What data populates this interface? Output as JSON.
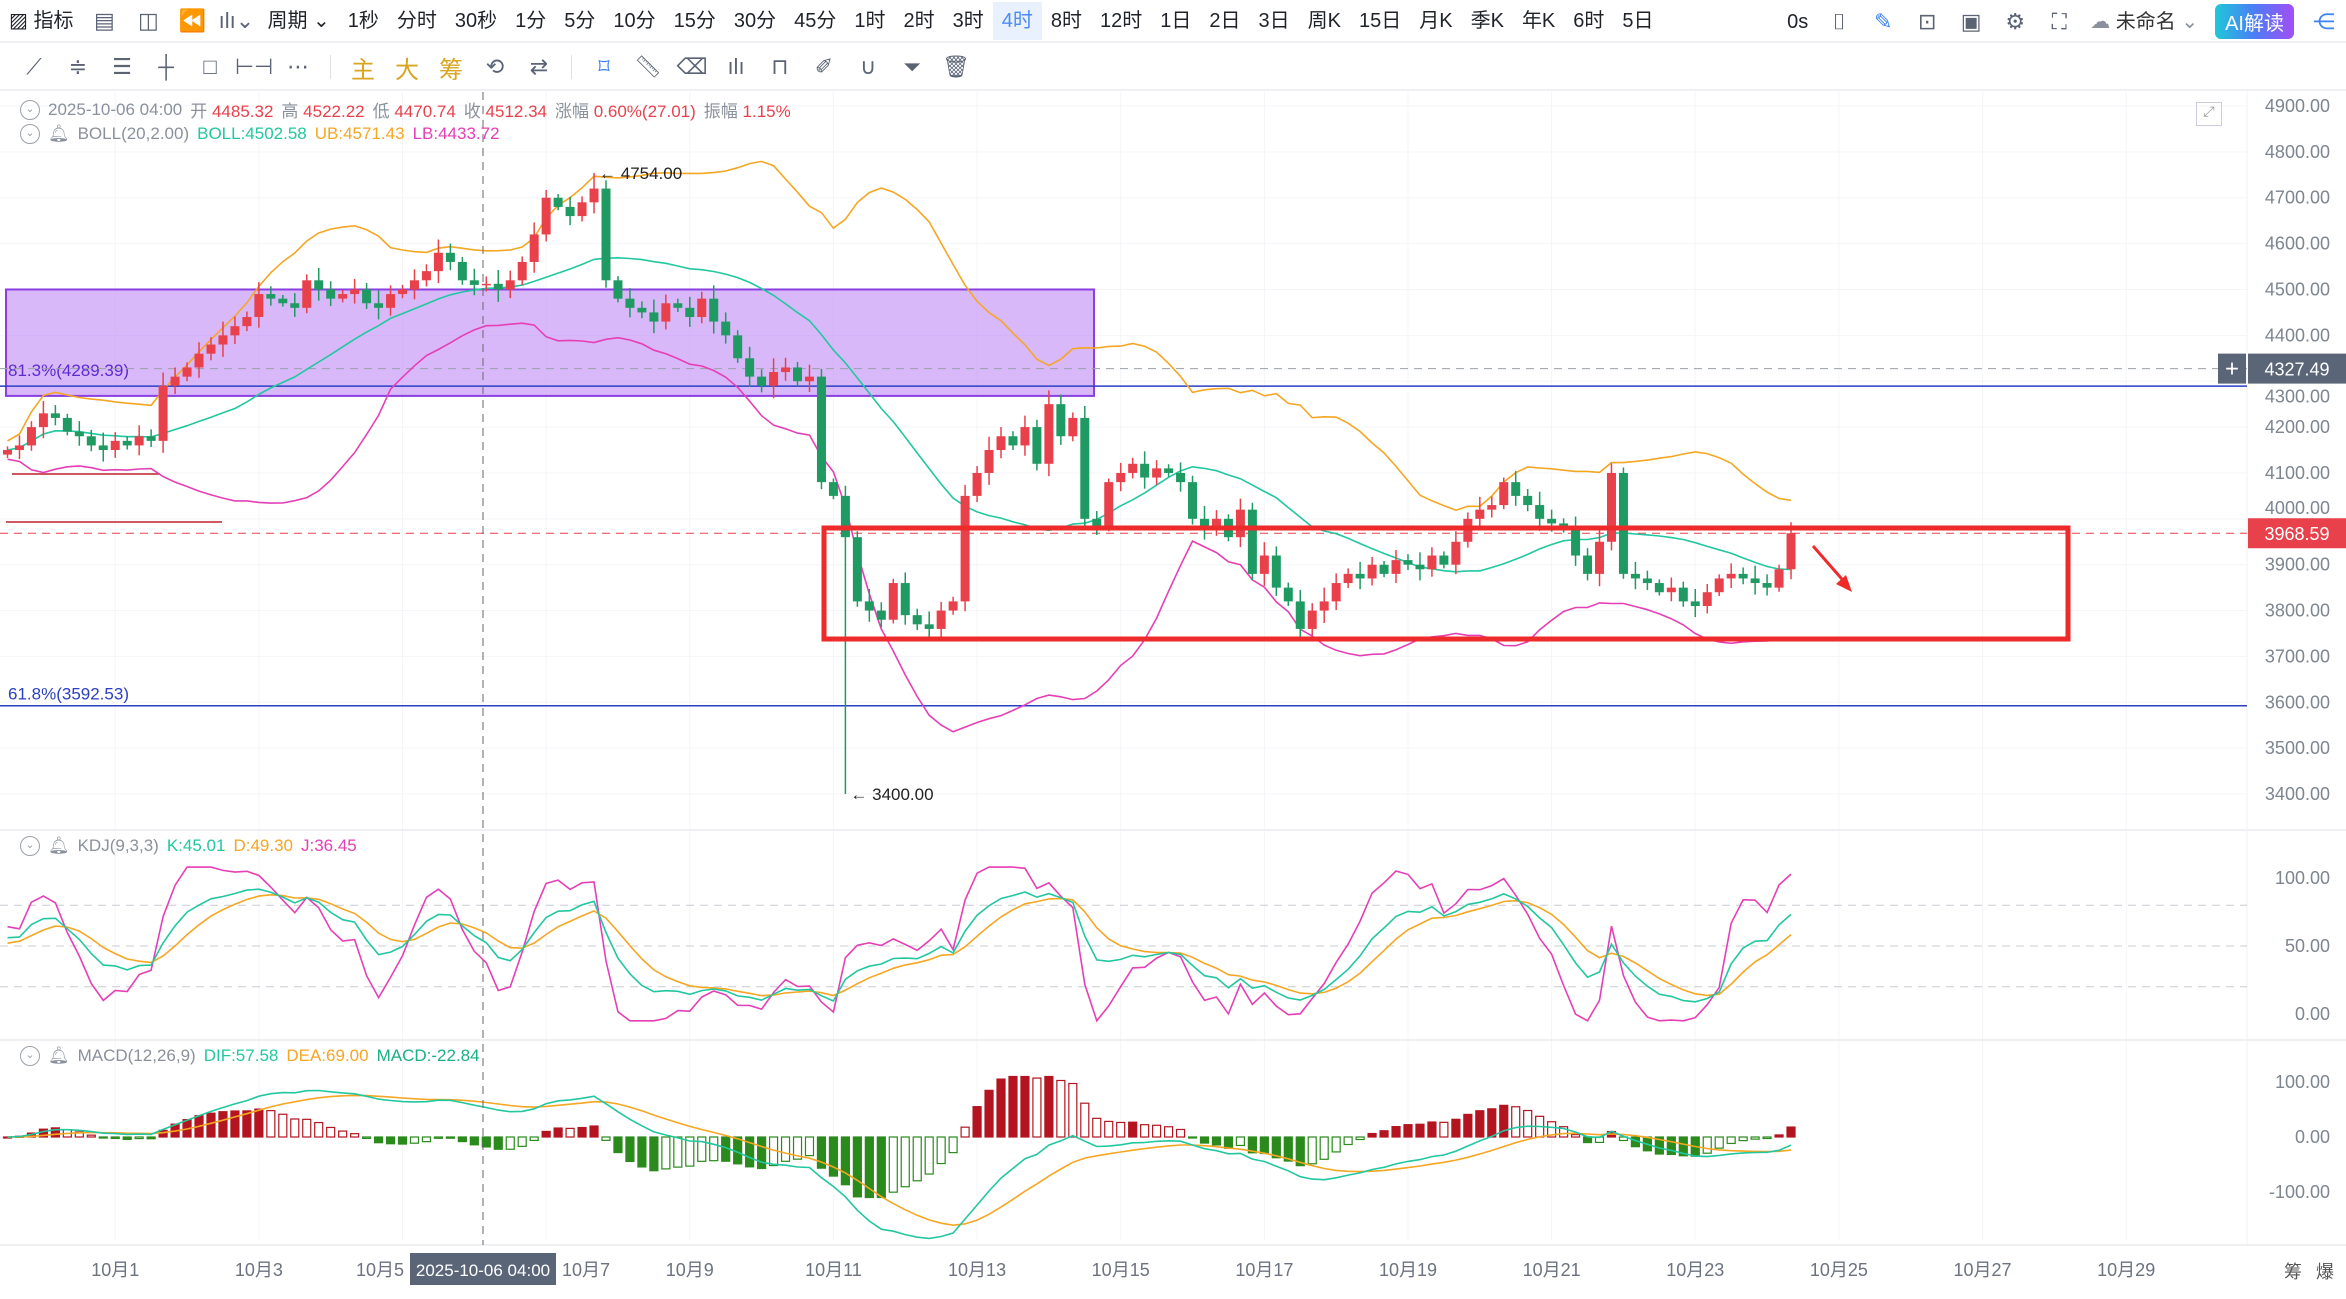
{
  "toolbar": {
    "indicator_label": "指标",
    "period_label": "周期",
    "timeframes": [
      "1秒",
      "分时",
      "30秒",
      "1分",
      "5分",
      "10分",
      "15分",
      "30分",
      "45分",
      "1时",
      "2时",
      "3时",
      "4时",
      "8时",
      "12时",
      "1日",
      "2日",
      "3日",
      "周K",
      "15日",
      "月K",
      "季K",
      "年K",
      "6时",
      "5日"
    ],
    "active_timeframe": "4时",
    "refresh": "0s",
    "layout_name": "未命名",
    "ai_button": "AI解读",
    "draw_tools": [
      "trend-line",
      "parallel-line",
      "channel",
      "cross-line",
      "rectangle",
      "range",
      "more"
    ],
    "main_label": "主",
    "big_label": "大",
    "chip_label": "筹"
  },
  "ohlc": {
    "date": "2025-10-06 04:00",
    "open_l": "开",
    "open": "4485.32",
    "high_l": "高",
    "high": "4522.22",
    "low_l": "低",
    "low": "4470.74",
    "close_l": "收",
    "close": "4512.34",
    "chg_l": "涨幅",
    "chg": "0.60%(27.01)",
    "amp_l": "振幅",
    "amp": "1.15%"
  },
  "boll": {
    "name": "BOLL(20,2.00)",
    "mid": "BOLL:4502.58",
    "ub": "UB:4571.43",
    "lb": "LB:4433.72"
  },
  "kdj": {
    "name": "KDJ(9,3,3)",
    "k": "K:45.01",
    "d": "D:49.30",
    "j": "J:36.45",
    "ticks": [
      "100.00",
      "50.00",
      "0.00"
    ]
  },
  "macd": {
    "name": "MACD(12,26,9)",
    "dif": "DIF:57.58",
    "dea": "DEA:69.00",
    "macd": "MACD:-22.84",
    "ticks": [
      "100.00",
      "0.00",
      "-100.00"
    ]
  },
  "colors": {
    "up": "#e8414c",
    "down": "#1f9a62",
    "mid": "#22c7a0",
    "ub": "#f5a623",
    "lb": "#e53fb6",
    "box": "#b97ef5",
    "fib": "#2a3fc2"
  },
  "price_axis": [
    "4900.00",
    "4800.00",
    "4700.00",
    "4600.00",
    "4500.00",
    "4400.00",
    "4300.00",
    "4200.00",
    "4100.00",
    "4000.00",
    "3900.00",
    "3800.00",
    "3700.00",
    "3600.00",
    "3500.00",
    "3400.00"
  ],
  "price_tags": {
    "crosshair": "4327.49",
    "last": "3968.59"
  },
  "annotations": {
    "high": "← 4754.00",
    "low": "← 3400.00",
    "fib813": "81.3%(4289.39)",
    "fib618": "61.8%(3592.53)"
  },
  "x_axis": [
    "10月1",
    "10月3",
    "10月5",
    "10月7",
    "10月9",
    "10月11",
    "10月13",
    "10月15",
    "10月17",
    "10月19",
    "10月21",
    "10月23",
    "10月25",
    "10月27",
    "10月29"
  ],
  "crosshair_date": "2025-10-06 04:00",
  "corner": [
    "筹",
    "爆"
  ],
  "chart_data": {
    "type": "candlestick",
    "interval": "4h",
    "first_label_index": 9,
    "levels": {
      "fib813": 4289.39,
      "fib618": 3592.53,
      "crosshair": 4327.49,
      "last": 3968.59,
      "box_top": 4500,
      "box_bottom": 4268,
      "zone_top": 3980,
      "zone_bottom": 3738
    },
    "extremes": {
      "high_index": 49,
      "high": 4754.0,
      "low_index": 70,
      "low": 3400.0
    },
    "closes": [
      4150,
      4160,
      4200,
      4230,
      4220,
      4190,
      4180,
      4160,
      4150,
      4170,
      4160,
      4180,
      4170,
      4290,
      4310,
      4330,
      4360,
      4380,
      4400,
      4420,
      4440,
      4490,
      4480,
      4470,
      4460,
      4520,
      4500,
      4480,
      4490,
      4500,
      4470,
      4460,
      4490,
      4500,
      4520,
      4540,
      4580,
      4560,
      4520,
      4510,
      4512.34,
      4500,
      4520,
      4560,
      4620,
      4700,
      4680,
      4660,
      4690,
      4720,
      4520,
      4480,
      4460,
      4450,
      4430,
      4470,
      4460,
      4440,
      4480,
      4430,
      4400,
      4350,
      4310,
      4290,
      4320,
      4330,
      4300,
      4310,
      4080,
      4050,
      3960,
      3820,
      3800,
      3780,
      3860,
      3790,
      3770,
      3760,
      3800,
      3820,
      4050,
      4100,
      4150,
      4180,
      4160,
      4200,
      4120,
      4250,
      4180,
      4220,
      4000,
      3980,
      4080,
      4100,
      4120,
      4090,
      4110,
      4100,
      4080,
      4000,
      3980,
      4000,
      3960,
      4020,
      3880,
      3920,
      3850,
      3820,
      3760,
      3800,
      3820,
      3860,
      3880,
      3870,
      3900,
      3880,
      3910,
      3900,
      3890,
      3920,
      3900,
      3950,
      4000,
      4020,
      4030,
      4080,
      4050,
      4030,
      4000,
      3990,
      3980,
      3920,
      3880,
      3950,
      4100,
      3880,
      3870,
      3860,
      3840,
      3850,
      3820,
      3810,
      3840,
      3870,
      3880,
      3870,
      3860,
      3850,
      3890,
      3968.59
    ]
  }
}
